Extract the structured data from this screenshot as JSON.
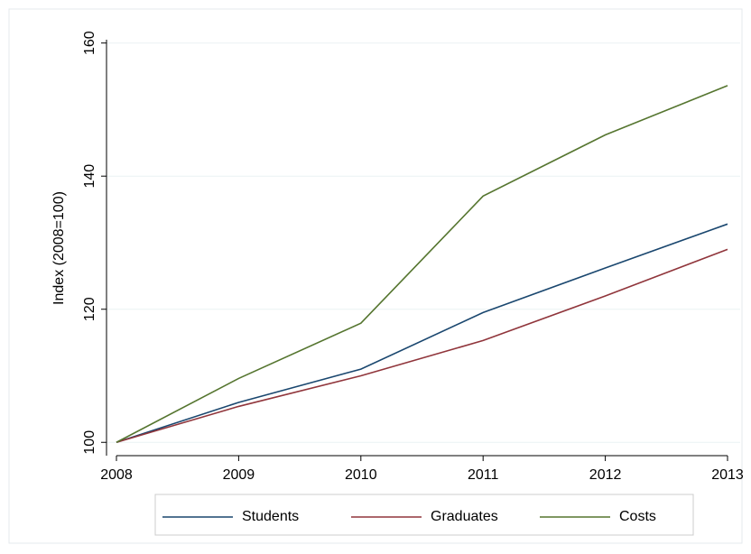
{
  "chart_data": {
    "type": "line",
    "y_label": "Index (2008=100)",
    "x": [
      2008,
      2009,
      2010,
      2011,
      2012,
      2013
    ],
    "series": [
      {
        "name": "Students",
        "color": "#1a476f",
        "values": [
          100,
          106,
          111,
          119.5,
          126.2,
          132.8
        ]
      },
      {
        "name": "Graduates",
        "color": "#90353b",
        "values": [
          100,
          105.4,
          110,
          115.3,
          122,
          129
        ]
      },
      {
        "name": "Costs",
        "color": "#55752f",
        "values": [
          100,
          109.6,
          117.9,
          137,
          146.2,
          153.6
        ]
      }
    ],
    "xlim": [
      2008,
      2013
    ],
    "xticks": [
      2008,
      2009,
      2010,
      2011,
      2012,
      2013
    ],
    "ylim": [
      98,
      160.5
    ],
    "yticks": [
      100,
      120,
      140,
      160
    ],
    "grid": true,
    "legend": "bottom"
  }
}
